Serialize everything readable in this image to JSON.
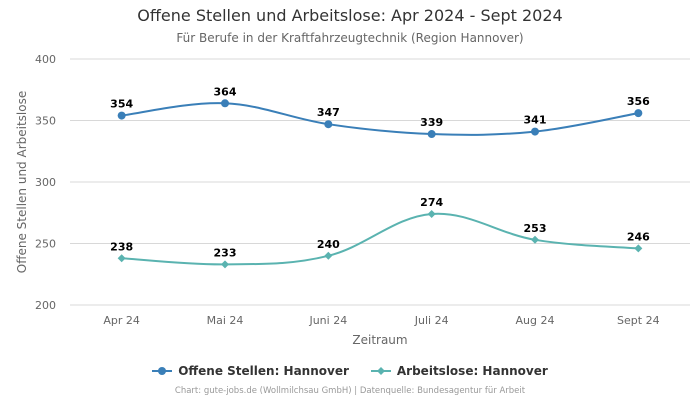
{
  "title": "Offene Stellen und Arbeitslose: Apr 2024 - Sept 2024",
  "subtitle": "Für Berufe in der Kraftfahrzeugtechnik (Region Hannover)",
  "credits": "Chart: gute-jobs.de (Wollmilchsau GmbH) | Datenquelle: Bundesagentur für Arbeit",
  "colors": {
    "offene_stellen": "#3a7fb8",
    "arbeitslose": "#5ab3b0",
    "grid": "#d8d8d8"
  },
  "chart_data": {
    "type": "line",
    "xlabel": "Zeitraum",
    "ylabel": "Offene Stellen und Arbeitslose",
    "categories": [
      "Apr 24",
      "Mai 24",
      "Juni 24",
      "Juli 24",
      "Aug 24",
      "Sept 24"
    ],
    "yticks": [
      "200",
      "250",
      "300",
      "350",
      "400"
    ],
    "ylim": [
      200,
      400
    ],
    "grid": true,
    "legend_position": "bottom-center",
    "series": [
      {
        "name": "Offene Stellen: Hannover",
        "values": [
          354,
          364,
          347,
          339,
          341,
          356
        ],
        "marker": "circle",
        "color": "#3a7fb8"
      },
      {
        "name": "Arbeitslose: Hannover",
        "values": [
          238,
          233,
          240,
          274,
          253,
          246
        ],
        "marker": "diamond",
        "color": "#5ab3b0"
      }
    ]
  }
}
